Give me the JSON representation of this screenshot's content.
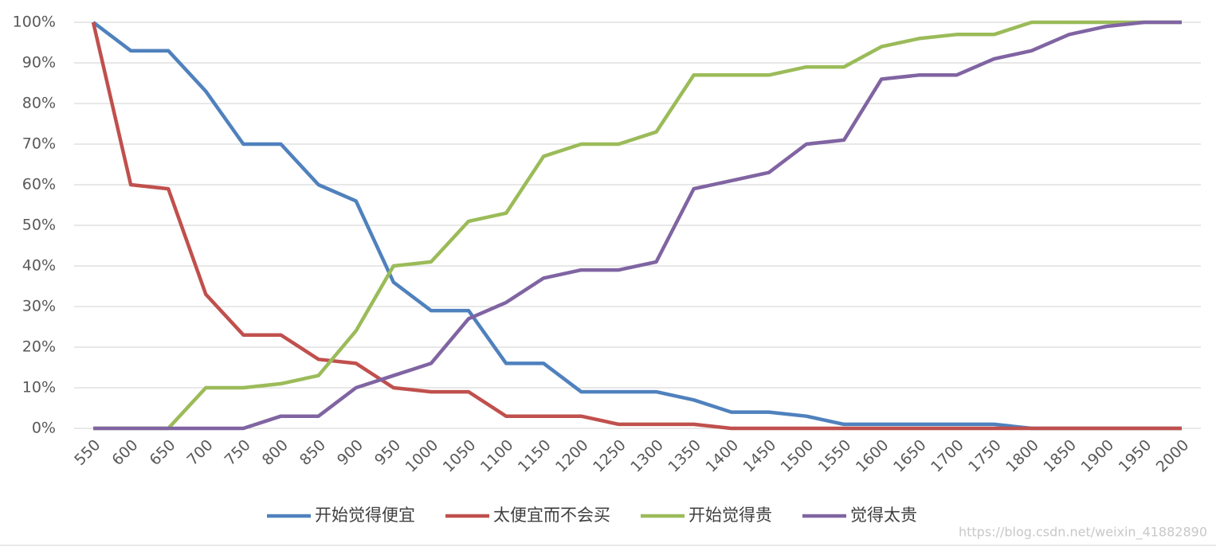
{
  "chart_data": {
    "type": "line",
    "x": [
      550,
      600,
      650,
      700,
      750,
      800,
      850,
      900,
      950,
      1000,
      1050,
      1100,
      1150,
      1200,
      1250,
      1300,
      1350,
      1400,
      1450,
      1500,
      1550,
      1600,
      1650,
      1700,
      1750,
      1800,
      1850,
      1900,
      1950,
      2000
    ],
    "xlim": [
      550,
      2000
    ],
    "ylim": [
      0,
      100
    ],
    "yticks": [
      {
        "value": 0,
        "label": "0%"
      },
      {
        "value": 10,
        "label": "10%"
      },
      {
        "value": 20,
        "label": "20%"
      },
      {
        "value": 30,
        "label": "30%"
      },
      {
        "value": 40,
        "label": "40%"
      },
      {
        "value": 50,
        "label": "50%"
      },
      {
        "value": 60,
        "label": "60%"
      },
      {
        "value": 70,
        "label": "70%"
      },
      {
        "value": 80,
        "label": "80%"
      },
      {
        "value": 90,
        "label": "90%"
      },
      {
        "value": 100,
        "label": "100%"
      }
    ],
    "grid": true,
    "legend": "bottom",
    "series": [
      {
        "name": "开始觉得便宜",
        "color": "#4f81bd",
        "values": [
          100,
          93,
          93,
          83,
          70,
          70,
          60,
          56,
          36,
          29,
          29,
          16,
          16,
          9,
          9,
          9,
          7,
          4,
          4,
          3,
          1,
          1,
          1,
          1,
          1,
          0,
          0,
          0,
          0,
          0
        ]
      },
      {
        "name": "太便宜而不会买",
        "color": "#c0504d",
        "values": [
          100,
          60,
          59,
          33,
          23,
          23,
          17,
          16,
          10,
          9,
          9,
          3,
          3,
          3,
          1,
          1,
          1,
          0,
          0,
          0,
          0,
          0,
          0,
          0,
          0,
          0,
          0,
          0,
          0,
          0
        ]
      },
      {
        "name": "开始觉得贵",
        "color": "#9bbb59",
        "values": [
          0,
          0,
          0,
          10,
          10,
          11,
          13,
          24,
          40,
          41,
          51,
          53,
          67,
          70,
          70,
          73,
          87,
          87,
          87,
          89,
          89,
          94,
          96,
          97,
          97,
          100,
          100,
          100,
          100,
          100
        ]
      },
      {
        "name": "觉得太贵",
        "color": "#8064a2",
        "values": [
          0,
          0,
          0,
          0,
          0,
          3,
          3,
          10,
          13,
          16,
          27,
          31,
          37,
          39,
          39,
          41,
          59,
          61,
          63,
          70,
          71,
          86,
          87,
          87,
          91,
          93,
          97,
          99,
          100,
          100
        ]
      }
    ]
  },
  "watermark": "https://blog.csdn.net/weixin_41882890"
}
